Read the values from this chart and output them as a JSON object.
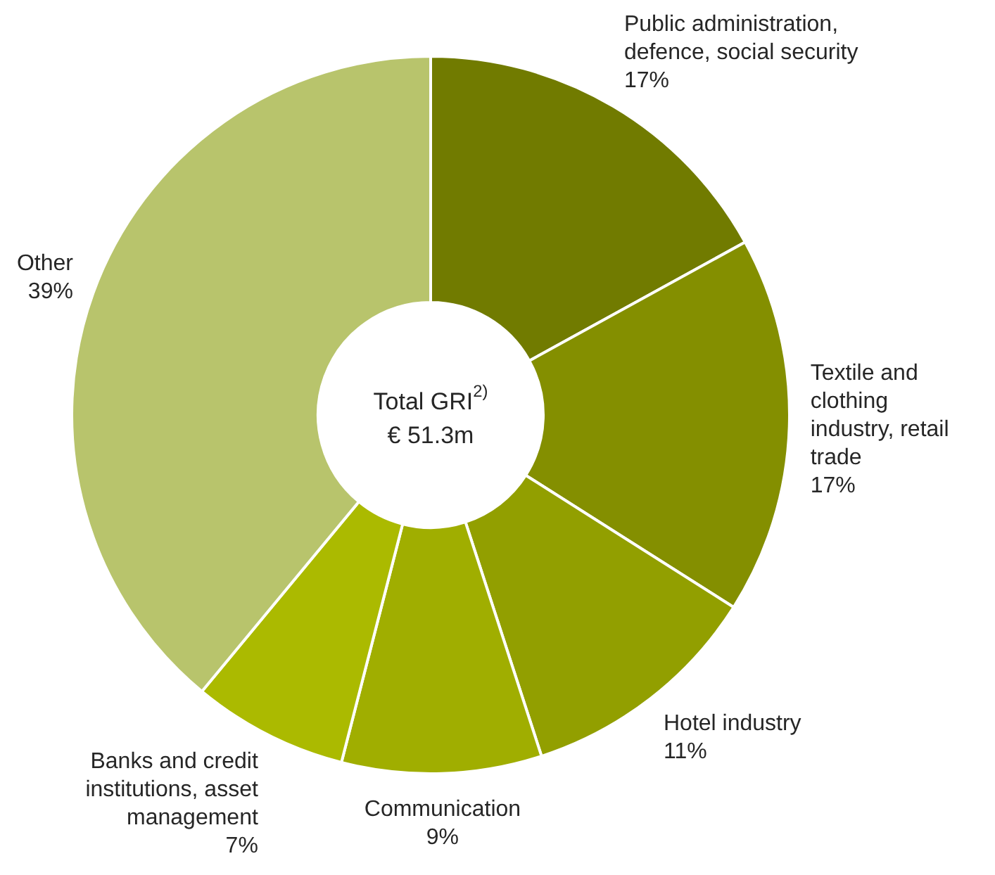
{
  "chart_data": {
    "type": "donut",
    "categories": [
      "Public administration, defence, social security",
      "Textile and clothing industry, retail trade",
      "Hotel industry",
      "Communication",
      "Banks and credit institutions, asset management",
      "Other"
    ],
    "values": [
      17,
      17,
      11,
      9,
      7,
      39
    ],
    "value_labels": [
      "17%",
      "17%",
      "11%",
      "9%",
      "7%",
      "39%"
    ],
    "colors": [
      "#717b00",
      "#848f00",
      "#929f00",
      "#a0ae00",
      "#abba00",
      "#b8c46c"
    ],
    "annotations": [
      "Total GRI$^{2)}$",
      "€ 51.3m"
    ],
    "legend": false
  }
}
